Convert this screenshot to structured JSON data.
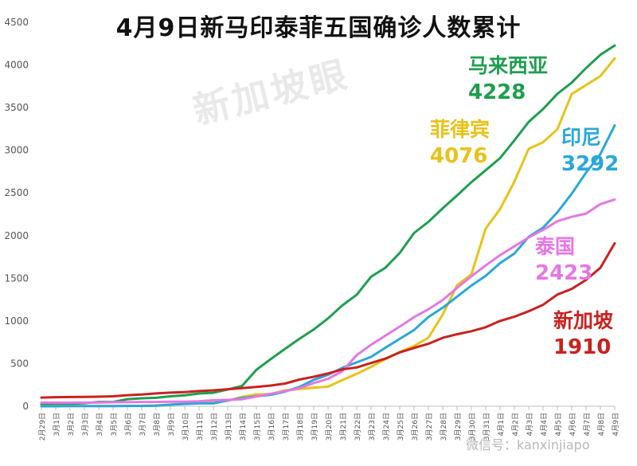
{
  "chart_data": {
    "type": "line",
    "title": "4月9日新马印泰菲五国确诊人数累计",
    "x": [
      "2月29日",
      "3月1日",
      "3月2日",
      "3月3日",
      "3月4日",
      "3月5日",
      "3月6日",
      "3月7日",
      "3月8日",
      "3月9日",
      "3月10日",
      "3月11日",
      "3月12日",
      "3月13日",
      "3月14日",
      "3月15日",
      "3月16日",
      "3月17日",
      "3月18日",
      "3月19日",
      "3月20日",
      "3月21日",
      "3月22日",
      "3月23日",
      "3月24日",
      "3月25日",
      "3月26日",
      "3月27日",
      "3月28日",
      "3月29日",
      "3月30日",
      "3月31日",
      "4月1日",
      "4月2日",
      "4月3日",
      "4月4日",
      "4月5日",
      "4月6日",
      "4月7日",
      "4月8日",
      "4月9日"
    ],
    "ylim": [
      0,
      4500
    ],
    "yticks": [
      0,
      500,
      1000,
      1500,
      2000,
      2500,
      3000,
      3500,
      4000,
      4500
    ],
    "grid": false,
    "series": [
      {
        "name": "马来西亚",
        "color": "#1f9e4f",
        "last_label": "4228",
        "values": [
          25,
          29,
          29,
          36,
          50,
          50,
          83,
          93,
          99,
          117,
          129,
          149,
          158,
          197,
          238,
          428,
          553,
          673,
          790,
          900,
          1030,
          1183,
          1306,
          1518,
          1624,
          1796,
          2031,
          2161,
          2320,
          2470,
          2626,
          2766,
          2908,
          3116,
          3333,
          3483,
          3662,
          3793,
          3963,
          4119,
          4228
        ]
      },
      {
        "name": "菲律宾",
        "color": "#e8c21a",
        "last_label": "4076",
        "values": [
          3,
          3,
          3,
          3,
          3,
          3,
          5,
          6,
          10,
          20,
          33,
          49,
          52,
          64,
          111,
          140,
          142,
          187,
          202,
          217,
          230,
          307,
          380,
          462,
          552,
          636,
          707,
          803,
          1075,
          1418,
          1546,
          2084,
          2311,
          2633,
          3018,
          3094,
          3246,
          3660,
          3764,
          3870,
          4076
        ]
      },
      {
        "name": "印尼",
        "color": "#2aa7da",
        "last_label": "3292",
        "values": [
          0,
          0,
          2,
          2,
          2,
          2,
          4,
          4,
          6,
          19,
          27,
          34,
          34,
          69,
          96,
          117,
          134,
          172,
          227,
          309,
          369,
          450,
          514,
          579,
          686,
          790,
          893,
          1046,
          1155,
          1285,
          1414,
          1528,
          1677,
          1790,
          1986,
          2092,
          2273,
          2491,
          2738,
          2956,
          3292
        ]
      },
      {
        "name": "泰国",
        "color": "#e577e3",
        "last_label": "2423",
        "values": [
          42,
          42,
          42,
          43,
          43,
          47,
          48,
          50,
          50,
          53,
          53,
          59,
          70,
          75,
          82,
          114,
          147,
          177,
          212,
          272,
          322,
          411,
          599,
          721,
          827,
          934,
          1045,
          1136,
          1245,
          1388,
          1524,
          1651,
          1771,
          1875,
          1978,
          2067,
          2169,
          2220,
          2258,
          2369,
          2423
        ]
      },
      {
        "name": "新加坡",
        "color": "#c8221f",
        "last_label": "1910",
        "values": [
          102,
          106,
          108,
          110,
          112,
          117,
          130,
          138,
          150,
          160,
          166,
          178,
          187,
          200,
          212,
          226,
          243,
          266,
          313,
          345,
          385,
          432,
          455,
          507,
          558,
          631,
          683,
          732,
          802,
          844,
          879,
          926,
          1000,
          1049,
          1114,
          1189,
          1309,
          1375,
          1481,
          1623,
          1910
        ]
      }
    ]
  },
  "watermark": "新加坡眼",
  "footer_watermark": "微信号：kanxinjiapo"
}
